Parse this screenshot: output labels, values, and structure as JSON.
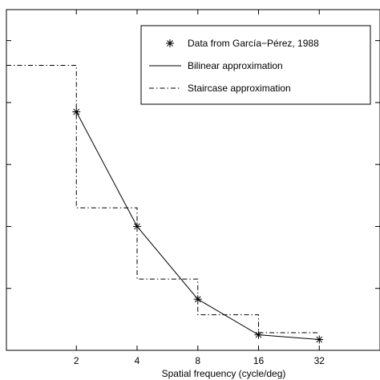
{
  "chart_data": {
    "type": "line",
    "xlabel": "Spatial frequency (cycle/deg)",
    "ylabel": "",
    "x_scale": "log2",
    "xlim": [
      0.9,
      64
    ],
    "ylim": [
      0,
      1.1
    ],
    "x_ticks": [
      2,
      4,
      8,
      16,
      32
    ],
    "x_tick_labels": [
      "2",
      "4",
      "8",
      "16",
      "32"
    ],
    "y_ticks": [
      0,
      0.2,
      0.4,
      0.6,
      0.8,
      1.0
    ],
    "grid": false,
    "legend_position": "top-right",
    "series": [
      {
        "name": "Data from García−Pérez, 1988",
        "style": "markers",
        "marker": "asterisk",
        "x": [
          2,
          4,
          8,
          16,
          32
        ],
        "y": [
          0.77,
          0.4,
          0.165,
          0.05,
          0.035
        ]
      },
      {
        "name": "Bilinear approximation",
        "style": "solid",
        "x": [
          2,
          4,
          8,
          16,
          32
        ],
        "y": [
          0.77,
          0.4,
          0.165,
          0.05,
          0.035
        ]
      },
      {
        "name": "Staircase approximation",
        "style": "dash-dot",
        "steps": [
          {
            "x_start": 0.9,
            "x_end": 2,
            "y": 0.92
          },
          {
            "x_start": 2,
            "x_end": 4,
            "y": 0.46
          },
          {
            "x_start": 4,
            "x_end": 8,
            "y": 0.23
          },
          {
            "x_start": 8,
            "x_end": 16,
            "y": 0.115
          },
          {
            "x_start": 16,
            "x_end": 32,
            "y": 0.057
          }
        ]
      }
    ],
    "colors": {
      "line": "#000000",
      "axes": "#000000",
      "background": "#ffffff"
    }
  }
}
